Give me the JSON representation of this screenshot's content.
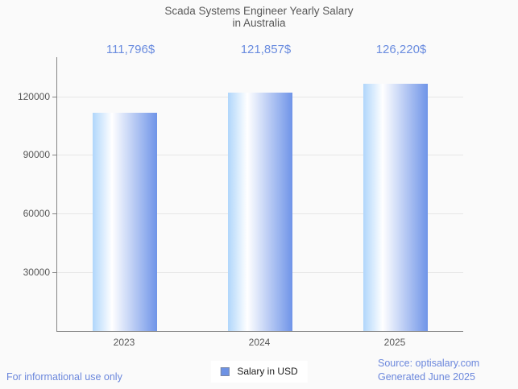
{
  "title": {
    "line1": "Scada Systems Engineer Yearly Salary",
    "line2": "in Australia"
  },
  "chart_data": {
    "type": "bar",
    "title": "Scada Systems Engineer Yearly Salary in Australia",
    "categories": [
      "2023",
      "2024",
      "2025"
    ],
    "series": [
      {
        "name": "Salary in USD",
        "values": [
          111796,
          121857,
          126220
        ]
      }
    ],
    "value_labels": [
      "111,796$",
      "121,857$",
      "126,220$"
    ],
    "xlabel": "",
    "ylabel": "",
    "ylim": [
      0,
      140000
    ],
    "yticks": [
      30000,
      60000,
      90000,
      120000
    ],
    "ytick_labels": [
      "30000",
      "60000",
      "90000",
      "120000"
    ],
    "grid": true,
    "legend": [
      "Salary in USD"
    ],
    "legend_position": "bottom"
  },
  "footer": {
    "left_note": "For informational use only",
    "legend_label": "Salary in USD",
    "source_line1": "Source: optisalary.com",
    "source_line2": "Generated June 2025"
  },
  "colors": {
    "accent_blue_text": "#6b87dc",
    "value_label_blue": "#6a8cdf",
    "bar_gradient_left": "#b0d6fb",
    "bar_gradient_mid": "#ffffff",
    "bar_gradient_right": "#6f94e8",
    "legend_swatch": "#6d92e4",
    "axis_line": "#858585",
    "gridline": "#e6e6e6",
    "text_dark": "#575757",
    "background": "#fafafa"
  }
}
